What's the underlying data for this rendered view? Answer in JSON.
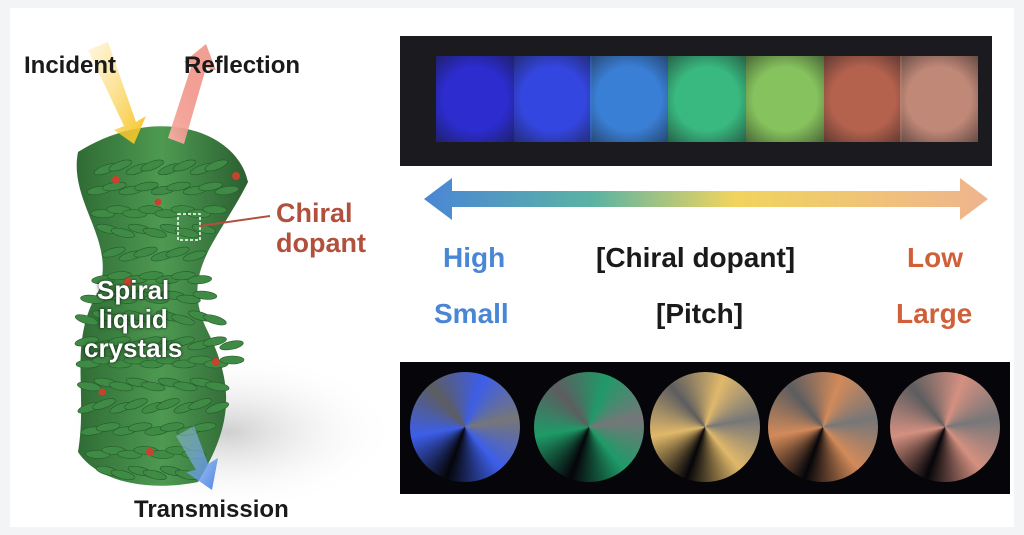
{
  "figure": {
    "labels": {
      "incident": "Incident",
      "reflection": "Reflection",
      "chiral_dopant_line1": "Chiral",
      "chiral_dopant_line2": "dopant",
      "spiral_line1": "Spiral",
      "spiral_line2": "liquid",
      "spiral_line3": "crystals",
      "transmission": "Transmission"
    },
    "scale": {
      "concentration_high": "High",
      "concentration_label": "[Chiral dopant]",
      "concentration_low": "Low",
      "pitch_small": "Small",
      "pitch_label": "[Pitch]",
      "pitch_large": "Large"
    },
    "film_colors": [
      "#2c2ccf",
      "#3446e0",
      "#3a7fd6",
      "#39b87f",
      "#86c25d",
      "#b4624e",
      "#c08877"
    ],
    "disc_colors": [
      "#3d5ee8",
      "#1f9a68",
      "#e0b86a",
      "#d28a5a",
      "#d49080"
    ]
  }
}
